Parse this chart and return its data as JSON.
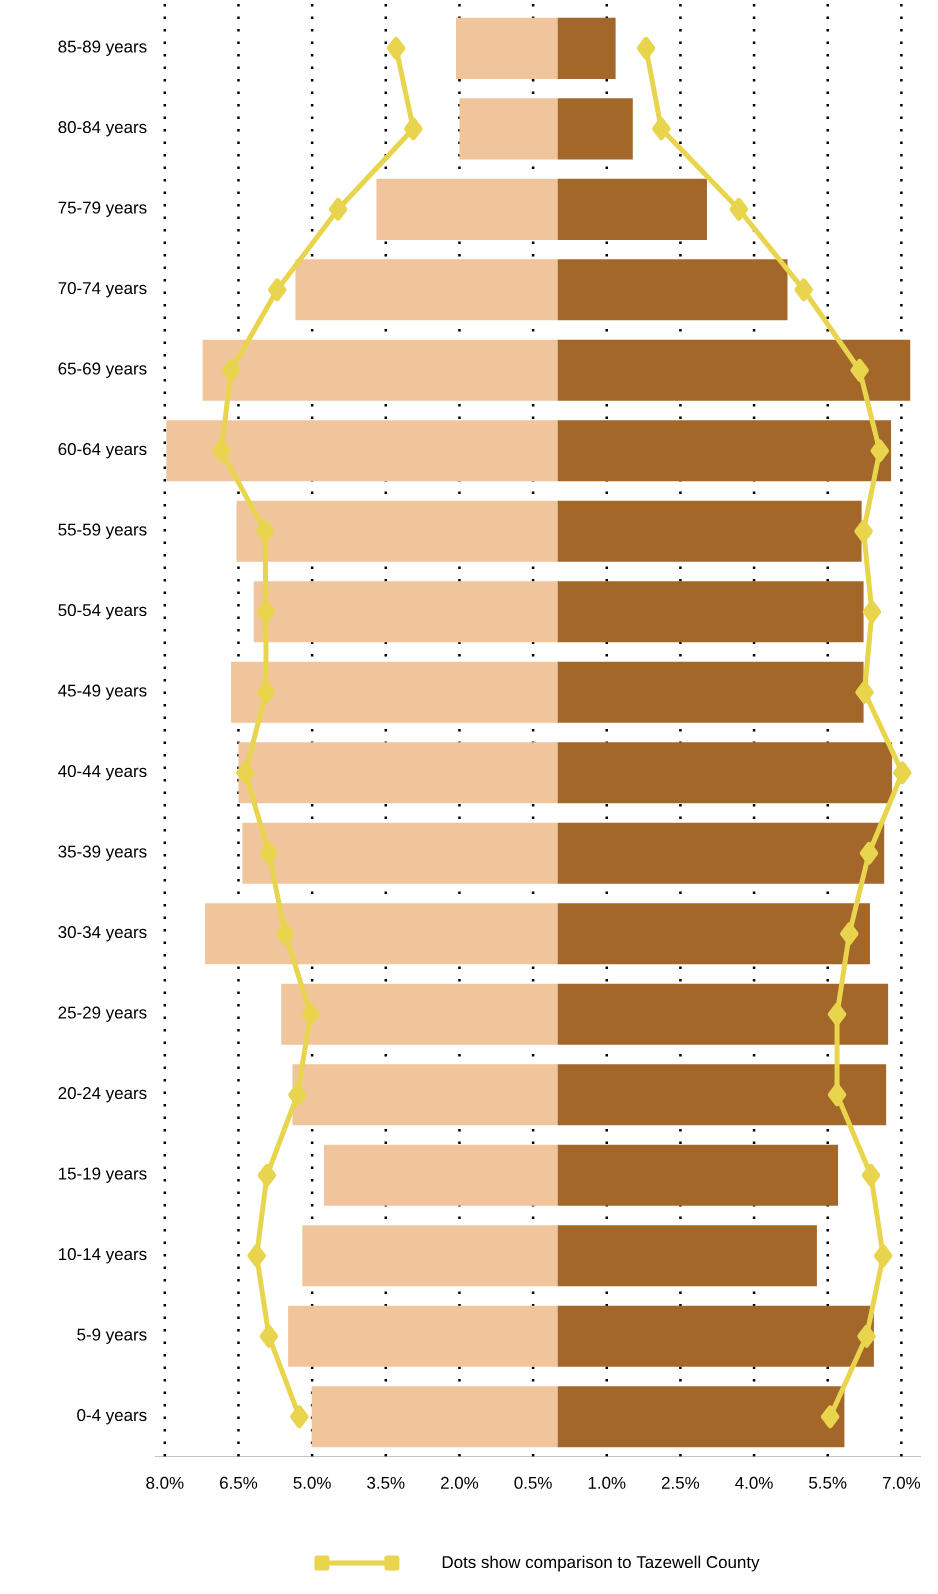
{
  "chart_data": {
    "type": "bar",
    "orientation": "horizontal",
    "categories": [
      "85-89 years",
      "80-84 years",
      "75-79 years",
      "70-74 years",
      "65-69 years",
      "60-64 years",
      "55-59 years",
      "50-54 years",
      "45-49 years",
      "40-44 years",
      "35-39 years",
      "30-34 years",
      "25-29 years",
      "20-24 years",
      "15-19 years",
      "10-14 years",
      "5-9 years",
      "0-4 years"
    ],
    "series": [
      {
        "color": "#f0c59c",
        "values": [
          -2.07,
          -2.0,
          -3.69,
          -5.34,
          -7.23,
          -7.97,
          -6.54,
          -6.19,
          -6.65,
          -6.5,
          -6.42,
          -7.18,
          -5.63,
          -5.4,
          -4.76,
          -5.2,
          -5.49,
          -5.01
        ]
      },
      {
        "color": "#a3672a",
        "values": [
          1.18,
          1.53,
          3.04,
          4.68,
          7.18,
          6.79,
          6.19,
          6.23,
          6.23,
          6.81,
          6.65,
          6.36,
          6.73,
          6.69,
          5.71,
          5.28,
          6.44,
          5.84
        ]
      },
      {
        "type": "line",
        "name": "Dots show comparison to Tazewell County",
        "color": "#e8d44d",
        "values": [
          -3.29,
          -2.94,
          -4.47,
          -5.71,
          -6.65,
          -6.85,
          -5.96,
          -5.94,
          -5.94,
          -6.36,
          -5.88,
          -5.55,
          -5.03,
          -5.3,
          -5.92,
          -6.13,
          -5.88,
          -5.26
        ]
      },
      {
        "type": "line",
        "color": "#e8d44d",
        "values": [
          1.8,
          2.11,
          3.69,
          5.01,
          6.15,
          6.56,
          6.23,
          6.4,
          6.25,
          7.02,
          6.34,
          5.94,
          5.69,
          5.69,
          6.38,
          6.63,
          6.29,
          5.55
        ]
      }
    ],
    "xlim": [
      -8.2,
      7.4
    ],
    "xticks": [
      {
        "value": -8,
        "label": "8.0%"
      },
      {
        "value": -6.5,
        "label": "6.5%"
      },
      {
        "value": -5,
        "label": "5.0%"
      },
      {
        "value": -3.5,
        "label": "3.5%"
      },
      {
        "value": -2,
        "label": "2.0%"
      },
      {
        "value": -0.5,
        "label": "0.5%"
      },
      {
        "value": 1,
        "label": "1.0%"
      },
      {
        "value": 2.5,
        "label": "2.5%"
      },
      {
        "value": 4,
        "label": "4.0%"
      },
      {
        "value": 5.5,
        "label": "5.5%"
      },
      {
        "value": 7,
        "label": "7.0%"
      }
    ],
    "stacked": true,
    "grid": "x",
    "legend": "bottom",
    "marker": "diamond"
  }
}
